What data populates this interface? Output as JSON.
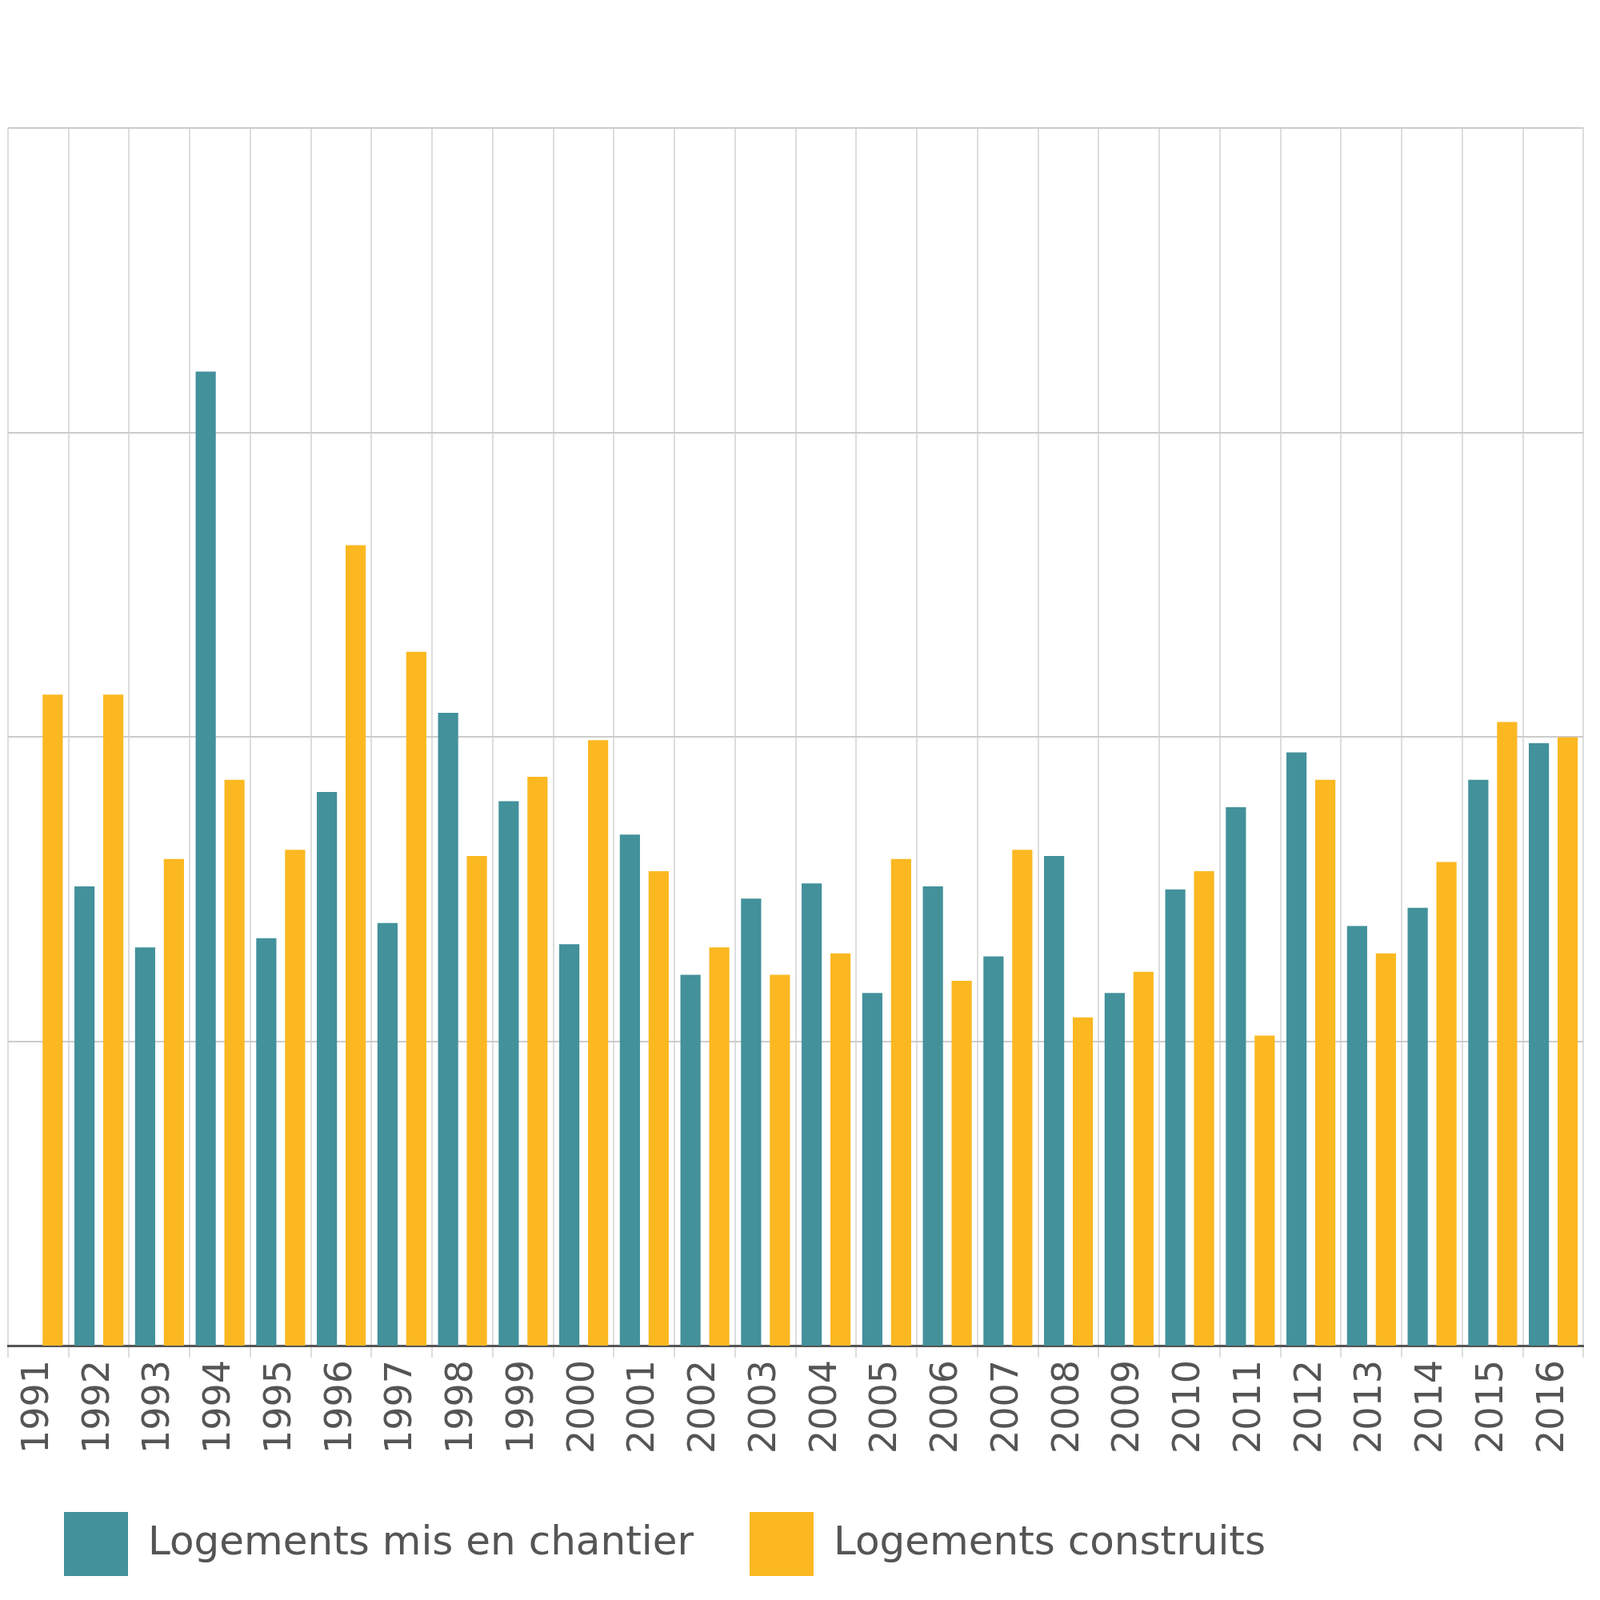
{
  "chart_data": {
    "type": "bar",
    "categories": [
      "1991",
      "1992",
      "1993",
      "1994",
      "1995",
      "1996",
      "1997",
      "1998",
      "1999",
      "2000",
      "2001",
      "2002",
      "2003",
      "2004",
      "2005",
      "2006",
      "2007",
      "2008",
      "2009",
      "2010",
      "2011",
      "2012",
      "2013",
      "2014",
      "2015",
      "2016"
    ],
    "series": [
      {
        "name": "Logements mis en chantier",
        "color": "#42919b",
        "values": [
          null,
          1510,
          1310,
          3200,
          1340,
          1820,
          1390,
          2080,
          1790,
          1320,
          1680,
          1220,
          1470,
          1520,
          1160,
          1510,
          1280,
          1610,
          1160,
          1500,
          1770,
          1950,
          1380,
          1440,
          1860,
          1980
        ]
      },
      {
        "name": "Logements construits",
        "color": "#fbb821",
        "values": [
          2140,
          2140,
          1600,
          1860,
          1630,
          2630,
          2280,
          1610,
          1870,
          1990,
          1560,
          1310,
          1220,
          1290,
          1600,
          1200,
          1630,
          1080,
          1230,
          1560,
          1020,
          1860,
          1290,
          1590,
          2050,
          2000
        ]
      }
    ],
    "ylim": [
      0,
      4000
    ],
    "yticks": [
      0,
      1000,
      2000,
      3000,
      4000
    ],
    "grid": true,
    "legend": "bottom",
    "tick_labels": "x"
  }
}
